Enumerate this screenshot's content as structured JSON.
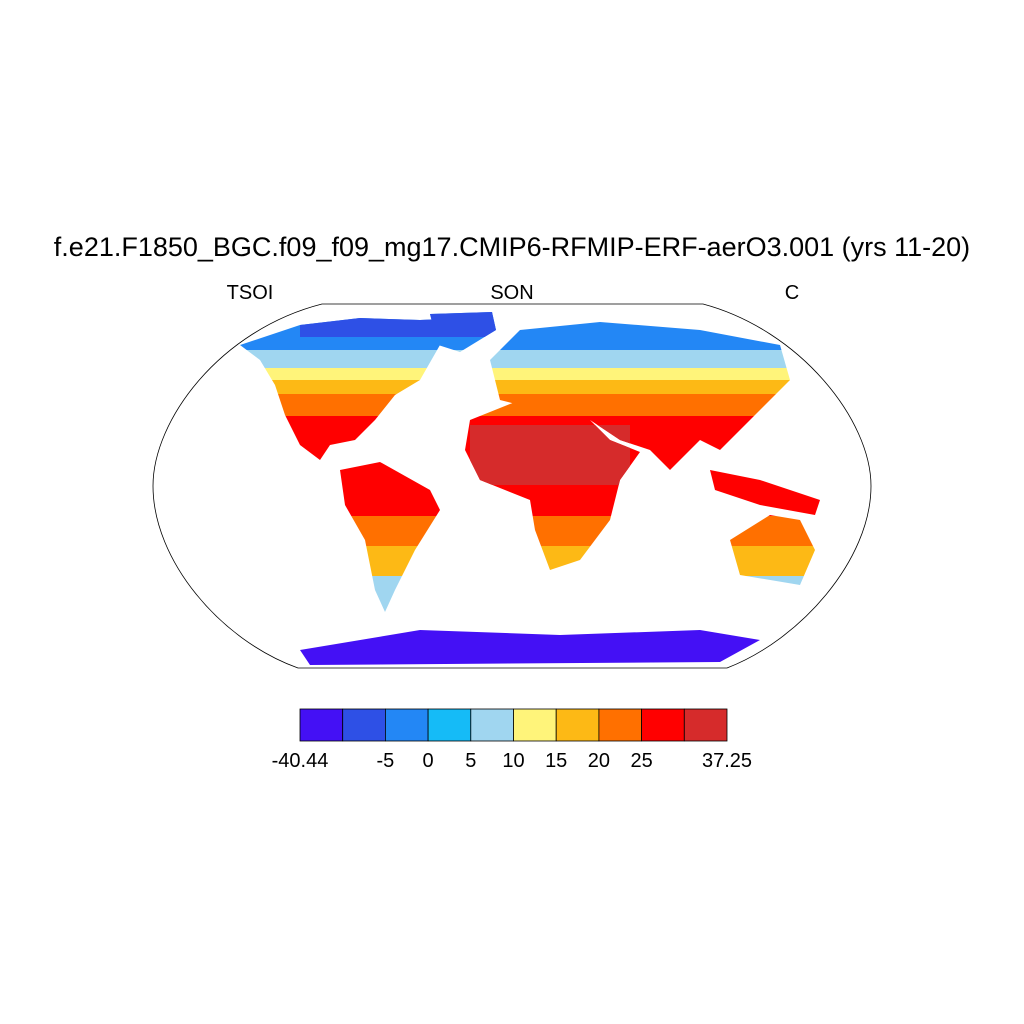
{
  "title": "f.e21.F1850_BGC.f09_f09_mg17.CMIP6-RFMIP-ERF-aerO3.001 (yrs 11-20)",
  "left_label": "TSOI",
  "center_label": "SON",
  "right_label": "C",
  "colorbar": {
    "colors": [
      "#4410f5",
      "#2e50e6",
      "#2387f5",
      "#15bbf7",
      "#a0d6f0",
      "#fff47a",
      "#fdb915",
      "#ff7000",
      "#ff0000",
      "#d62b2b"
    ],
    "levels": [
      -40.44,
      null,
      -5,
      0,
      5,
      10,
      15,
      20,
      25,
      null,
      37.25
    ]
  }
}
